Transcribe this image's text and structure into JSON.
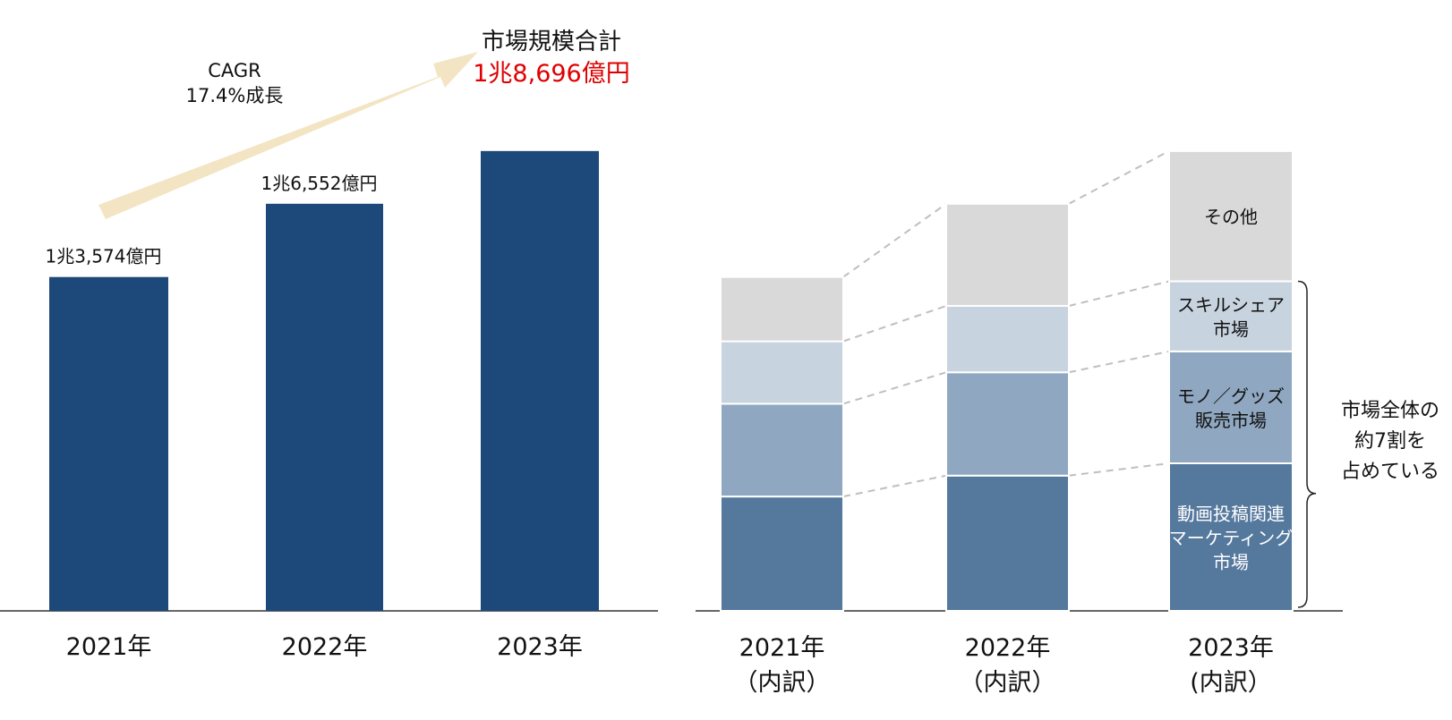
{
  "colors": {
    "total_bar": "#1d497a",
    "other": "#d9d9d9",
    "skill_share": "#c7d4df",
    "goods": "#8fa7c0",
    "video": "#55789d",
    "arrow": "#f3e5c3",
    "highlight_text": "#e00000",
    "axis": "#333333",
    "connector": "#bfbfbf"
  },
  "chart_data": [
    {
      "type": "bar",
      "categories": [
        "2021年",
        "2022年",
        "2023年"
      ],
      "values": [
        13574,
        16552,
        18696
      ],
      "data_labels": [
        "1兆3,574億円",
        "1兆6,552億円",
        ""
      ],
      "ylim": [
        0,
        20000
      ],
      "annotations": {
        "cagr_line1": "CAGR",
        "cagr_line2": "17.4%成長",
        "total_title": "市場規模合計",
        "total_value": "1兆8,696億円"
      }
    },
    {
      "type": "bar",
      "stacked": true,
      "categories": [
        {
          "line1": "2021年",
          "line2": "（内訳）"
        },
        {
          "line1": "2022年",
          "line2": "（内訳）"
        },
        {
          "line1": "2023年",
          "line2": "(内訳）"
        }
      ],
      "ylim": [
        0,
        20000
      ],
      "series": [
        {
          "key": "video",
          "values": [
            4650,
            5500,
            6000
          ]
        },
        {
          "key": "goods",
          "values": [
            3770,
            4200,
            4550
          ]
        },
        {
          "key": "skill_share",
          "values": [
            2540,
            2700,
            2850
          ]
        },
        {
          "key": "other",
          "values": [
            2614,
            4152,
            5296
          ]
        }
      ],
      "segment_labels": {
        "video": [
          "動画投稿関連",
          "マーケティング",
          "市場"
        ],
        "goods": [
          "モノ／グッズ",
          "販売市場"
        ],
        "skill_share": [
          "スキルシェア",
          "市場"
        ],
        "other": [
          "その他"
        ]
      },
      "bracket_note": [
        "市場全体の",
        "約7割を",
        "占めている"
      ]
    }
  ]
}
